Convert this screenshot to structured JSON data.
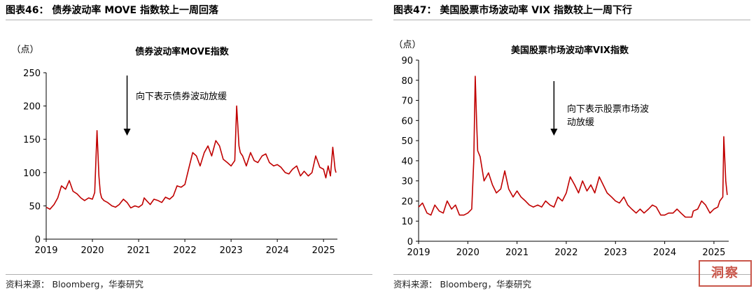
{
  "panels": [
    {
      "fig_title": "图表46：   债券波动率 MOVE 指数较上一周回落",
      "source": "资料来源：   Bloomberg，华泰研究"
    },
    {
      "fig_title": "图表47：   美国股票市场波动率 VIX 指数较上一周下行",
      "source": "资料来源：   Bloomberg，华泰研究"
    }
  ],
  "stamp_text": "洞察",
  "chart_data": [
    {
      "type": "line",
      "title": "债券波动率MOVE指数",
      "ylabel": "（点）",
      "xlabel": "",
      "color": "#c00000",
      "ylim": [
        0,
        250
      ],
      "xlim": [
        2019.0,
        2025.3
      ],
      "y_ticks": [
        0,
        50,
        100,
        150,
        200,
        250
      ],
      "x_ticks": [
        2019,
        2020,
        2021,
        2022,
        2023,
        2024,
        2025
      ],
      "annotation": "向下表示债券波动放缓",
      "arrow_x": 2020.75,
      "series": [
        {
          "name": "MOVE",
          "x": [
            2019.0,
            2019.08,
            2019.17,
            2019.25,
            2019.33,
            2019.42,
            2019.5,
            2019.58,
            2019.67,
            2019.75,
            2019.83,
            2019.92,
            2020.0,
            2020.05,
            2020.1,
            2020.14,
            2020.17,
            2020.2,
            2020.25,
            2020.33,
            2020.42,
            2020.5,
            2020.58,
            2020.67,
            2020.75,
            2020.83,
            2020.92,
            2021.0,
            2021.08,
            2021.12,
            2021.17,
            2021.25,
            2021.33,
            2021.42,
            2021.5,
            2021.58,
            2021.67,
            2021.75,
            2021.83,
            2021.92,
            2022.0,
            2022.08,
            2022.17,
            2022.25,
            2022.33,
            2022.42,
            2022.5,
            2022.58,
            2022.67,
            2022.75,
            2022.83,
            2022.92,
            2023.0,
            2023.08,
            2023.12,
            2023.17,
            2023.2,
            2023.25,
            2023.33,
            2023.42,
            2023.5,
            2023.58,
            2023.67,
            2023.75,
            2023.83,
            2023.92,
            2024.0,
            2024.08,
            2024.17,
            2024.25,
            2024.33,
            2024.42,
            2024.5,
            2024.58,
            2024.67,
            2024.75,
            2024.83,
            2024.92,
            2025.0,
            2025.05,
            2025.1,
            2025.15,
            2025.2,
            2025.25,
            2025.27
          ],
          "values": [
            48,
            45,
            52,
            62,
            80,
            75,
            88,
            72,
            68,
            62,
            58,
            62,
            60,
            70,
            163,
            95,
            70,
            62,
            58,
            55,
            50,
            48,
            52,
            60,
            55,
            47,
            50,
            48,
            52,
            62,
            58,
            52,
            60,
            58,
            55,
            63,
            60,
            65,
            80,
            78,
            82,
            105,
            130,
            125,
            110,
            130,
            140,
            125,
            148,
            140,
            120,
            115,
            110,
            118,
            200,
            140,
            130,
            125,
            110,
            130,
            118,
            115,
            125,
            128,
            115,
            110,
            112,
            108,
            100,
            98,
            105,
            110,
            95,
            102,
            95,
            100,
            125,
            108,
            105,
            92,
            110,
            95,
            138,
            105,
            100
          ]
        }
      ]
    },
    {
      "type": "line",
      "title": "美国股票市场波动率VIX指数",
      "ylabel": "（点）",
      "xlabel": "",
      "color": "#c00000",
      "ylim": [
        0,
        90
      ],
      "xlim": [
        2019.0,
        2025.3
      ],
      "y_ticks": [
        0,
        10,
        20,
        30,
        40,
        50,
        60,
        70,
        80,
        90
      ],
      "x_ticks": [
        2019,
        2020,
        2021,
        2022,
        2023,
        2024,
        2025
      ],
      "annotation": "向下表示股票市场波动放缓",
      "arrow_x": 2021.75,
      "series": [
        {
          "name": "VIX",
          "x": [
            2019.0,
            2019.08,
            2019.17,
            2019.25,
            2019.33,
            2019.42,
            2019.5,
            2019.58,
            2019.67,
            2019.75,
            2019.83,
            2019.92,
            2020.0,
            2020.08,
            2020.12,
            2020.15,
            2020.18,
            2020.2,
            2020.25,
            2020.33,
            2020.42,
            2020.5,
            2020.58,
            2020.67,
            2020.75,
            2020.83,
            2020.92,
            2021.0,
            2021.08,
            2021.17,
            2021.25,
            2021.33,
            2021.42,
            2021.5,
            2021.58,
            2021.67,
            2021.75,
            2021.83,
            2021.92,
            2022.0,
            2022.08,
            2022.17,
            2022.25,
            2022.33,
            2022.42,
            2022.5,
            2022.58,
            2022.67,
            2022.75,
            2022.83,
            2022.92,
            2023.0,
            2023.08,
            2023.17,
            2023.25,
            2023.33,
            2023.42,
            2023.5,
            2023.58,
            2023.67,
            2023.75,
            2023.83,
            2023.92,
            2024.0,
            2024.08,
            2024.17,
            2024.25,
            2024.33,
            2024.42,
            2024.5,
            2024.55,
            2024.58,
            2024.67,
            2024.75,
            2024.83,
            2024.92,
            2025.0,
            2025.08,
            2025.12,
            2025.18,
            2025.2,
            2025.24,
            2025.27
          ],
          "values": [
            17,
            19,
            14,
            13,
            18,
            15,
            14,
            20,
            16,
            18,
            13,
            13,
            14,
            16,
            40,
            82,
            58,
            45,
            42,
            30,
            34,
            28,
            24,
            26,
            35,
            26,
            22,
            25,
            22,
            20,
            18,
            17,
            18,
            17,
            20,
            18,
            17,
            22,
            20,
            24,
            32,
            28,
            24,
            30,
            25,
            28,
            24,
            32,
            28,
            24,
            22,
            20,
            19,
            22,
            18,
            16,
            14,
            16,
            14,
            16,
            18,
            17,
            13,
            13,
            14,
            14,
            16,
            14,
            12,
            12,
            12,
            15,
            16,
            20,
            18,
            14,
            16,
            17,
            20,
            22,
            52,
            30,
            23
          ]
        }
      ]
    }
  ]
}
